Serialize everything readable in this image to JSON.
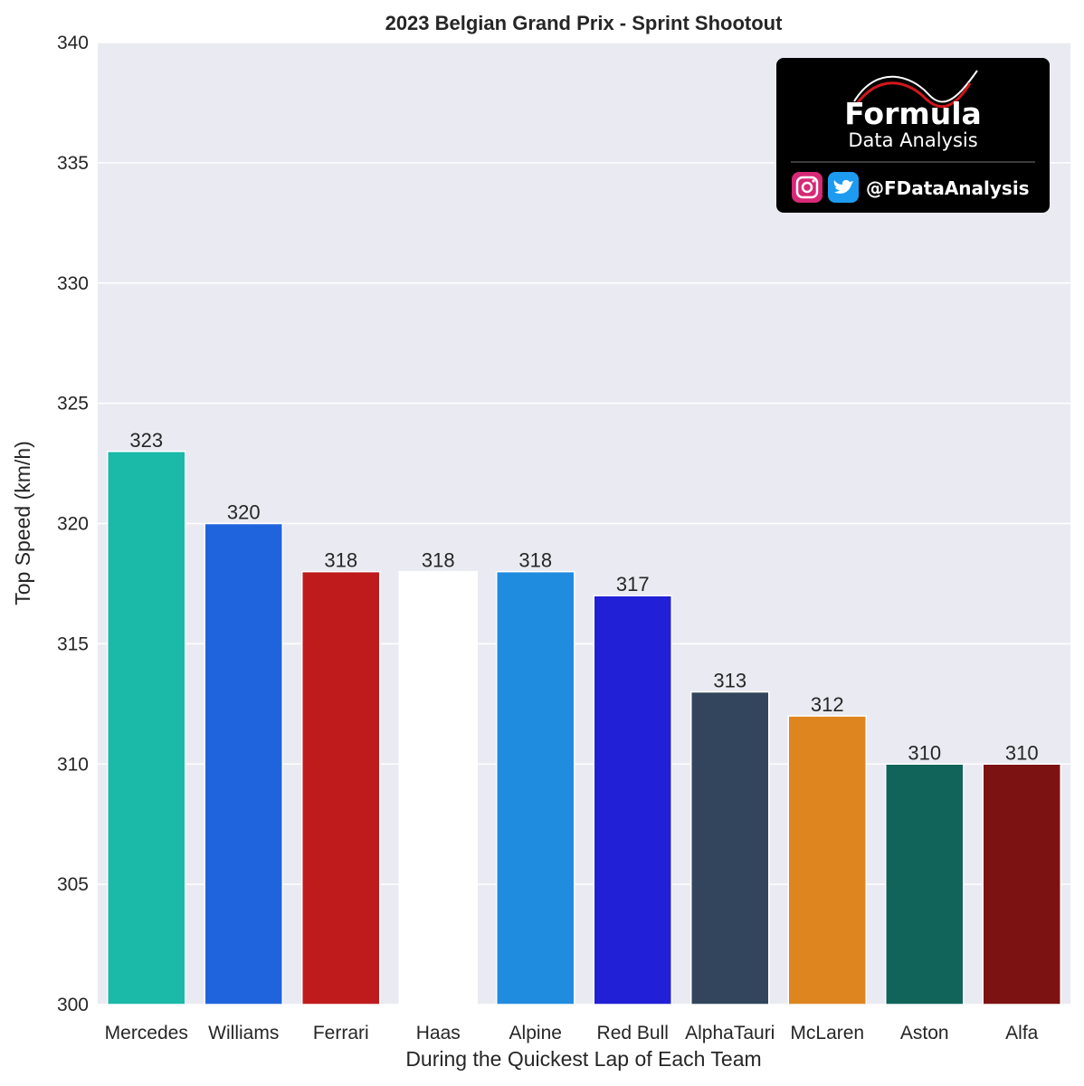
{
  "chart_data": {
    "type": "bar",
    "title": "2023 Belgian Grand Prix - Sprint Shootout",
    "xlabel": "During the Quickest Lap of Each Team",
    "ylabel": "Top Speed (km/h)",
    "ylim": [
      300,
      340
    ],
    "yticks": [
      "300",
      "305",
      "310",
      "315",
      "320",
      "325",
      "330",
      "335",
      "340"
    ],
    "categories": [
      "Mercedes",
      "Williams",
      "Ferrari",
      "Haas",
      "Alpine",
      "Red Bull",
      "AlphaTauri",
      "McLaren",
      "Aston",
      "Alfa"
    ],
    "values": [
      323,
      320,
      318,
      318,
      318,
      317,
      313,
      312,
      310,
      310
    ],
    "bar_colors": [
      "#1ab9a8",
      "#2064dd",
      "#bf1b1d",
      "#ffffff",
      "#208cdf",
      "#2220d6",
      "#32455c",
      "#de8520",
      "#10645a",
      "#7d1213"
    ],
    "data_labels": [
      "323",
      "320",
      "318",
      "318",
      "318",
      "317",
      "313",
      "312",
      "310",
      "310"
    ],
    "grid": true,
    "background_color": "#eaeaf2"
  },
  "logo": {
    "title": "Formula",
    "subtitle": "Data Analysis",
    "handle": "@FDataAnalysis",
    "icons": [
      "instagram-icon",
      "twitter-icon"
    ],
    "background_color": "#000000",
    "accent_color": "#d3171b"
  }
}
